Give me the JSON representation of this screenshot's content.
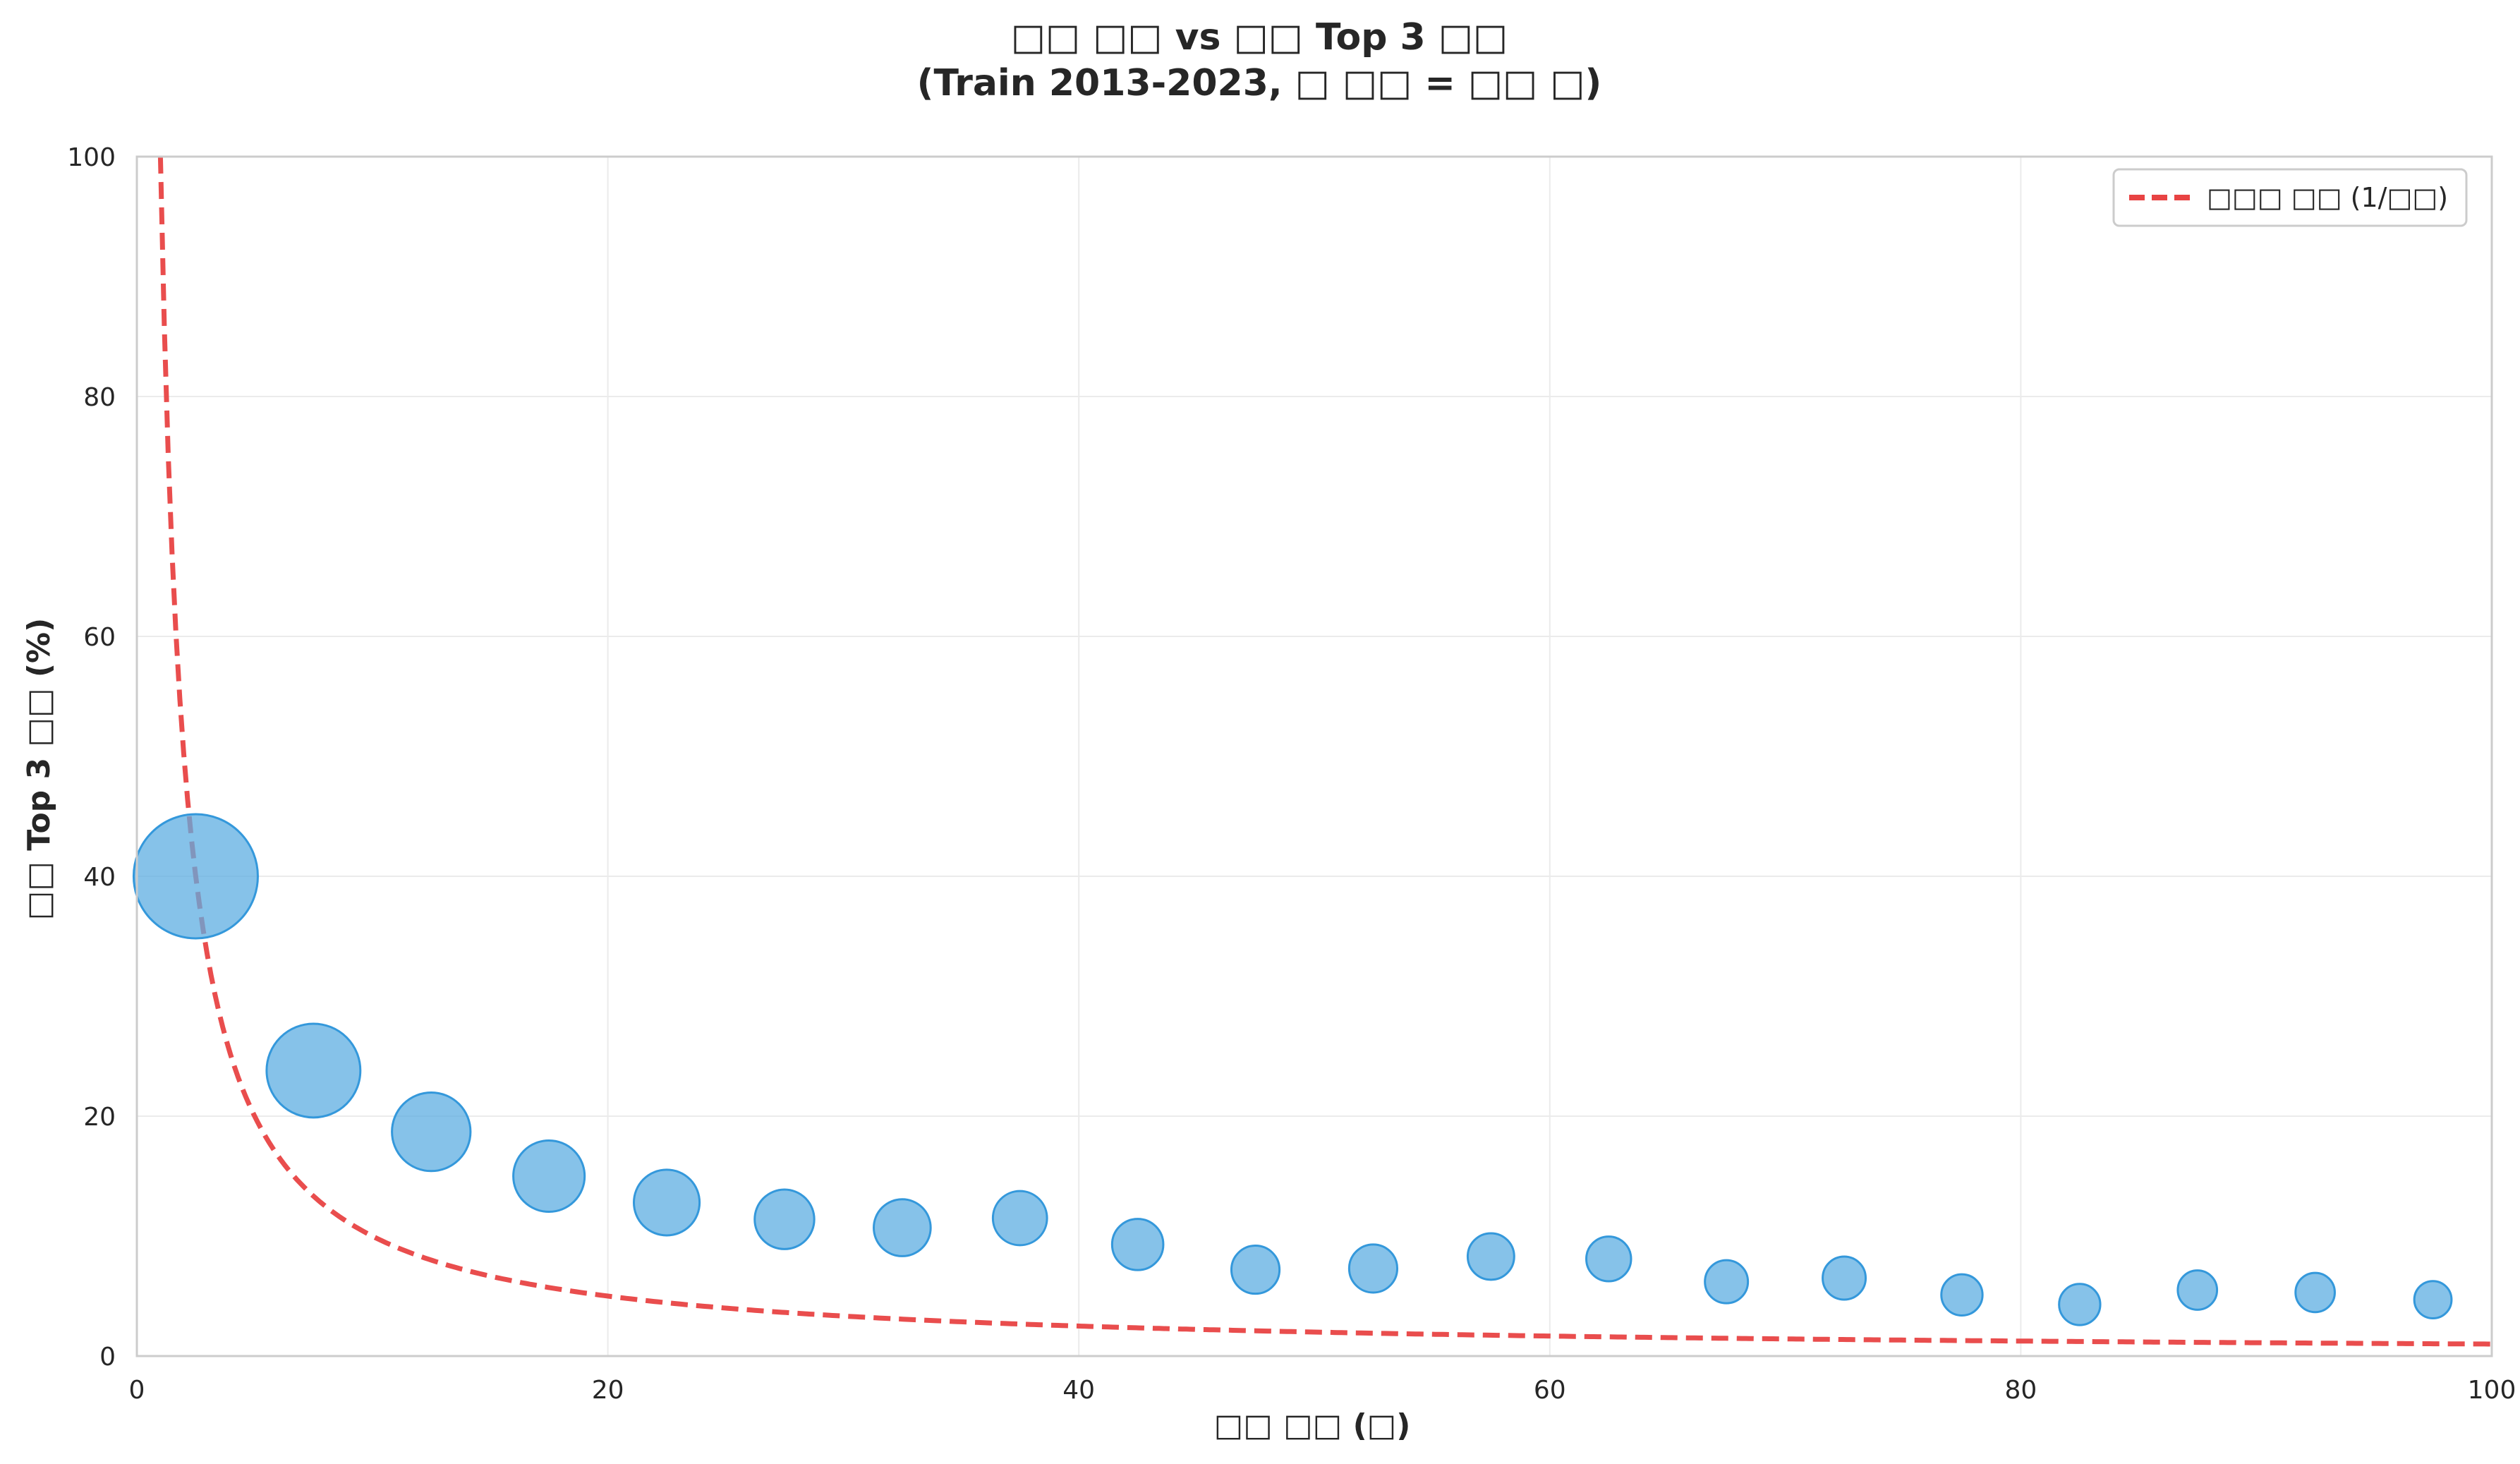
{
  "chart_data": {
    "type": "scatter",
    "title_line1": "□□ □□ vs □□ Top 3 □□",
    "title_line2": "(Train 2013-2023, □ □□ = □□ □)",
    "xlabel": "□□ □□ (□)",
    "ylabel": "□□ Top 3 □□ (%)",
    "xlim": [
      0,
      100
    ],
    "ylim": [
      0,
      100
    ],
    "x_ticks": [
      0,
      20,
      40,
      60,
      80,
      100
    ],
    "y_ticks": [
      0,
      20,
      40,
      60,
      80,
      100
    ],
    "grid": true,
    "legend_position": "top-right",
    "points": [
      {
        "x": 2.5,
        "y": 40.0,
        "size": 1.0
      },
      {
        "x": 7.5,
        "y": 23.8,
        "size": 0.57
      },
      {
        "x": 12.5,
        "y": 18.7,
        "size": 0.4
      },
      {
        "x": 17.5,
        "y": 15.0,
        "size": 0.33
      },
      {
        "x": 22.5,
        "y": 12.8,
        "size": 0.28
      },
      {
        "x": 27.5,
        "y": 11.4,
        "size": 0.23
      },
      {
        "x": 32.5,
        "y": 10.7,
        "size": 0.21
      },
      {
        "x": 37.5,
        "y": 11.5,
        "size": 0.19
      },
      {
        "x": 42.5,
        "y": 9.3,
        "size": 0.17
      },
      {
        "x": 47.5,
        "y": 7.2,
        "size": 0.15
      },
      {
        "x": 52.5,
        "y": 7.3,
        "size": 0.15
      },
      {
        "x": 57.5,
        "y": 8.3,
        "size": 0.14
      },
      {
        "x": 62.5,
        "y": 8.1,
        "size": 0.13
      },
      {
        "x": 67.5,
        "y": 6.2,
        "size": 0.12
      },
      {
        "x": 72.5,
        "y": 6.5,
        "size": 0.12
      },
      {
        "x": 77.5,
        "y": 5.1,
        "size": 0.11
      },
      {
        "x": 82.5,
        "y": 4.3,
        "size": 0.11
      },
      {
        "x": 87.5,
        "y": 5.5,
        "size": 0.1
      },
      {
        "x": 92.5,
        "y": 5.3,
        "size": 0.1
      },
      {
        "x": 97.5,
        "y": 4.7,
        "size": 0.09
      }
    ],
    "reference_line": {
      "name": "□□□ □□ (1/□□)",
      "formula": "100/x",
      "x_start": 1,
      "x_end": 100
    },
    "colors": {
      "points_fill": "#5DADE2",
      "points_stroke": "#3498DB",
      "reference_line": "#E84343",
      "grid": "#EBEBEB",
      "axis": "#CCCCCC"
    }
  }
}
